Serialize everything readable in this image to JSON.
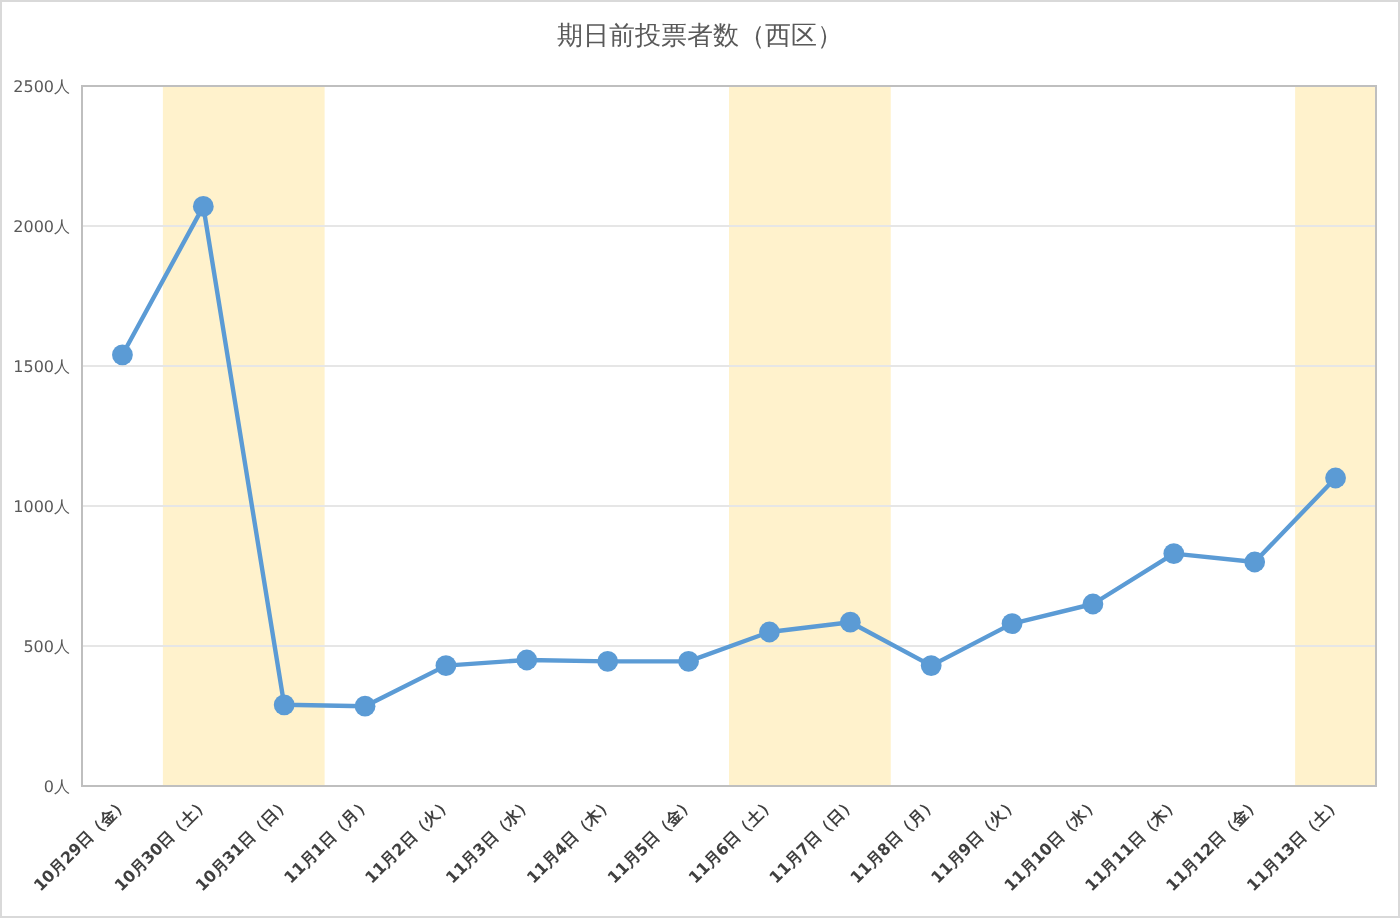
{
  "chart_data": {
    "type": "line",
    "title": "期日前投票者数（西区）",
    "categories": [
      "10月29日（金）",
      "10月30日（土）",
      "10月31日（日）",
      "11月1日（月）",
      "11月2日（火）",
      "11月3日（水）",
      "11月4日（木）",
      "11月5日（金）",
      "11月6日（土）",
      "11月7日（日）",
      "11月8日（月）",
      "11月9日（火）",
      "11月10日（水）",
      "11月11日（木）",
      "11月12日（金）",
      "11月13日（土）"
    ],
    "series": [
      {
        "color": "#5b9bd5",
        "values": [
          1540,
          2070,
          290,
          285,
          430,
          450,
          445,
          445,
          550,
          585,
          430,
          580,
          650,
          830,
          800,
          1100
        ]
      }
    ],
    "ylim": [
      0,
      2500
    ],
    "yticks": [
      {
        "value": 0,
        "label": "0人"
      },
      {
        "value": 500,
        "label": "500人"
      },
      {
        "value": 1000,
        "label": "1000人"
      },
      {
        "value": 1500,
        "label": "1500人"
      },
      {
        "value": 2000,
        "label": "2000人"
      },
      {
        "value": 2500,
        "label": "2500人"
      }
    ],
    "bands": [
      {
        "axis": "x",
        "from": "10月30日（土）",
        "to": "10月31日（日）",
        "color": "#fff2cc"
      },
      {
        "axis": "x",
        "from": "11月6日（土）",
        "to": "11月7日（日）",
        "color": "#fff2cc"
      },
      {
        "axis": "x",
        "from": "11月13日（土）",
        "to": "11月13日（土）",
        "color": "#fff2cc"
      }
    ],
    "grid": "y",
    "marker": "circle",
    "line_style": "solid"
  }
}
